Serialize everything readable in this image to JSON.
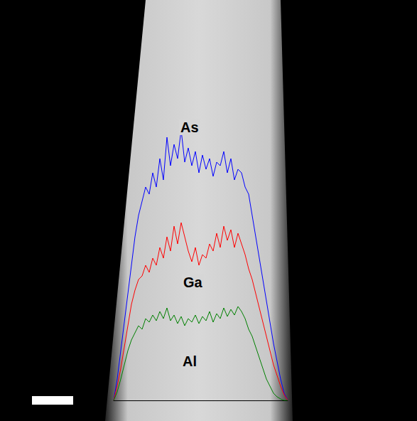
{
  "chart_data": {
    "type": "line",
    "x": [
      0,
      5,
      10,
      15,
      20,
      25,
      30,
      35,
      40,
      45,
      50,
      55,
      60,
      65,
      70,
      75,
      80,
      85,
      90,
      95,
      100,
      105,
      110,
      115,
      120,
      125,
      130,
      135,
      140,
      145,
      150,
      155,
      160,
      165,
      170,
      175,
      180,
      185,
      190,
      195,
      200,
      205,
      210,
      215,
      220,
      225,
      230,
      235,
      240,
      245
    ],
    "series": [
      {
        "name": "As",
        "color": "#0000ff",
        "values": [
          0,
          30,
          70,
          110,
          150,
          190,
          230,
          260,
          280,
          300,
          290,
          320,
          300,
          340,
          310,
          370,
          330,
          360,
          340,
          380,
          335,
          355,
          330,
          350,
          320,
          345,
          325,
          340,
          315,
          335,
          330,
          350,
          320,
          340,
          310,
          325,
          320,
          300,
          290,
          260,
          230,
          200,
          170,
          140,
          110,
          80,
          55,
          30,
          10,
          0
        ]
      },
      {
        "name": "Ga",
        "color": "#ff0000",
        "values": [
          0,
          20,
          45,
          75,
          105,
          135,
          155,
          170,
          175,
          190,
          180,
          200,
          190,
          215,
          200,
          230,
          210,
          245,
          220,
          250,
          230,
          210,
          195,
          215,
          190,
          205,
          200,
          220,
          210,
          235,
          215,
          245,
          225,
          240,
          215,
          235,
          220,
          205,
          185,
          170,
          150,
          130,
          110,
          90,
          70,
          50,
          35,
          20,
          8,
          0
        ]
      },
      {
        "name": "Al",
        "color": "#008000",
        "values": [
          0,
          12,
          30,
          50,
          70,
          85,
          95,
          105,
          100,
          115,
          110,
          120,
          112,
          125,
          115,
          130,
          112,
          120,
          108,
          118,
          105,
          115,
          110,
          120,
          108,
          118,
          112,
          125,
          110,
          122,
          115,
          130,
          118,
          128,
          120,
          132,
          125,
          115,
          100,
          90,
          75,
          60,
          45,
          30,
          20,
          10,
          5,
          2,
          0,
          0
        ]
      }
    ],
    "xlim": [
      0,
      245
    ],
    "ylim": [
      0,
      400
    ],
    "tick_labels": false,
    "grid": false
  }
}
